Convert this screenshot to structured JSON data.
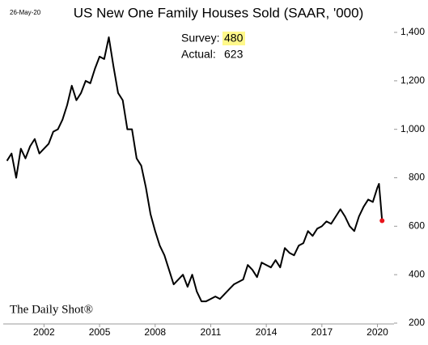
{
  "chart_data": {
    "type": "line",
    "title": "US New One Family Houses Sold (SAAR, '000)",
    "date": "26-May-20",
    "source": "The Daily Shot®",
    "annotations": [
      {
        "label": "Survey:",
        "value": 480
      },
      {
        "label": "Actual:",
        "value": 623
      }
    ],
    "x": [
      2000,
      2000.25,
      2000.5,
      2000.75,
      2001,
      2001.25,
      2001.5,
      2001.75,
      2002,
      2002.25,
      2002.5,
      2002.75,
      2003,
      2003.25,
      2003.5,
      2003.75,
      2004,
      2004.25,
      2004.5,
      2004.75,
      2005,
      2005.25,
      2005.5,
      2005.75,
      2006,
      2006.25,
      2006.5,
      2006.75,
      2007,
      2007.25,
      2007.5,
      2007.75,
      2008,
      2008.25,
      2008.5,
      2008.75,
      2009,
      2009.25,
      2009.5,
      2009.75,
      2010,
      2010.25,
      2010.5,
      2010.75,
      2011,
      2011.25,
      2011.5,
      2011.75,
      2012,
      2012.25,
      2012.5,
      2012.75,
      2013,
      2013.25,
      2013.5,
      2013.75,
      2014,
      2014.25,
      2014.5,
      2014.75,
      2015,
      2015.25,
      2015.5,
      2015.75,
      2016,
      2016.25,
      2016.5,
      2016.75,
      2017,
      2017.25,
      2017.5,
      2017.75,
      2018,
      2018.25,
      2018.5,
      2018.75,
      2019,
      2019.25,
      2019.5,
      2019.75,
      2020,
      2020.083,
      2020.167,
      2020.25
    ],
    "series": [
      {
        "name": "New One Family Houses Sold",
        "color": "#000000",
        "values": [
          870,
          900,
          800,
          920,
          880,
          930,
          960,
          900,
          920,
          940,
          990,
          1000,
          1040,
          1100,
          1180,
          1120,
          1150,
          1200,
          1190,
          1250,
          1300,
          1290,
          1380,
          1260,
          1150,
          1120,
          1000,
          1000,
          880,
          850,
          760,
          650,
          580,
          520,
          480,
          420,
          360,
          380,
          400,
          350,
          400,
          330,
          290,
          290,
          300,
          310,
          300,
          320,
          340,
          360,
          370,
          380,
          440,
          420,
          390,
          450,
          440,
          430,
          460,
          430,
          510,
          490,
          480,
          520,
          530,
          580,
          560,
          590,
          600,
          620,
          610,
          640,
          670,
          640,
          600,
          580,
          640,
          680,
          710,
          700,
          760,
          775,
          700,
          623
        ]
      }
    ],
    "highlight_color": "#e8141b",
    "xlim": [
      1999.8,
      2021.2
    ],
    "ylim": [
      200,
      1400
    ],
    "xticks": [
      2002,
      2005,
      2008,
      2011,
      2014,
      2017,
      2020
    ],
    "yticks": [
      {
        "value": 1400,
        "label": "1,400"
      },
      {
        "value": 1200,
        "label": "1,200"
      },
      {
        "value": 1000,
        "label": "1,000"
      },
      800,
      600,
      400,
      200
    ],
    "grid": false
  }
}
